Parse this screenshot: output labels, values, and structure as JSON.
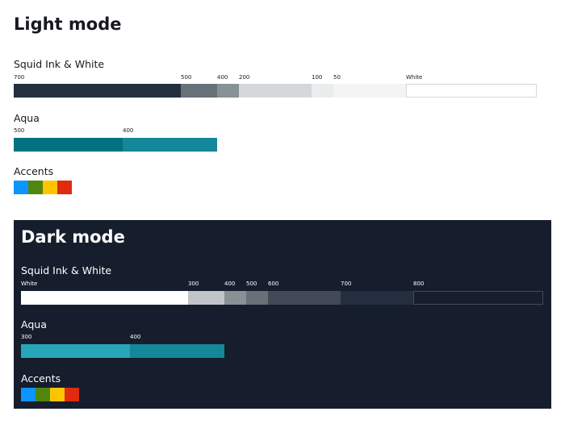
{
  "light": {
    "title": "Light mode",
    "squid": {
      "heading": "Squid Ink & White",
      "shades": [
        {
          "label": "700",
          "color": "#232f3e"
        },
        {
          "label": "500",
          "color": "#687078"
        },
        {
          "label": "400",
          "color": "#879196"
        },
        {
          "label": "200",
          "color": "#d5d8da"
        },
        {
          "label": "100",
          "color": "#eaeded"
        },
        {
          "label": "50",
          "color": "#f4f4f4"
        },
        {
          "label": "White",
          "color": "#ffffff"
        }
      ]
    },
    "aqua": {
      "heading": "Aqua",
      "shades": [
        {
          "label": "500",
          "color": "#037280"
        },
        {
          "label": "400",
          "color": "#14879a"
        }
      ]
    },
    "accents": {
      "heading": "Accents",
      "colors": [
        "#0a95ff",
        "#50860e",
        "#ffc400",
        "#e02b0f"
      ]
    }
  },
  "dark": {
    "title": "Dark mode",
    "squid": {
      "heading": "Squid Ink & White",
      "shades": [
        {
          "label": "White",
          "color": "#ffffff"
        },
        {
          "label": "300",
          "color": "#c1c5c9"
        },
        {
          "label": "400",
          "color": "#879196"
        },
        {
          "label": "500",
          "color": "#687078"
        },
        {
          "label": "600",
          "color": "#414a56"
        },
        {
          "label": "700",
          "color": "#232f3e"
        },
        {
          "label": "800",
          "color": "#161d2c"
        }
      ]
    },
    "aqua": {
      "heading": "Aqua",
      "shades": [
        {
          "label": "300",
          "color": "#27a6b9"
        },
        {
          "label": "400",
          "color": "#14879a"
        }
      ]
    },
    "accents": {
      "heading": "Accents",
      "colors": [
        "#0a95ff",
        "#50860e",
        "#ffc400",
        "#e02b0f"
      ]
    }
  }
}
